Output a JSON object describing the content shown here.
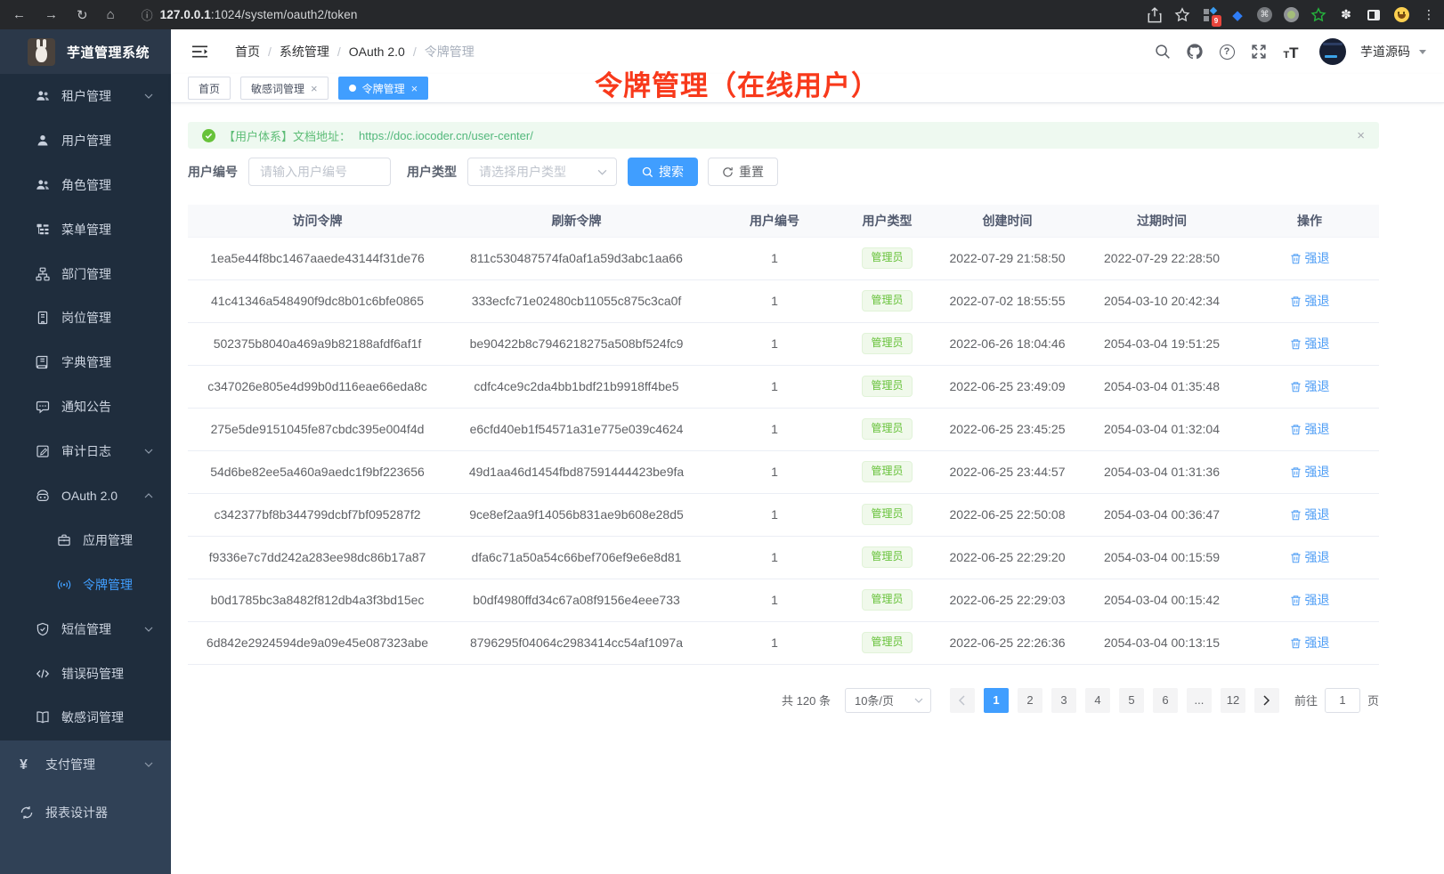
{
  "browser": {
    "url_host": "127.0.0.1",
    "url_rest": ":1024/system/oauth2/token",
    "extension_badge": "9"
  },
  "app": {
    "title": "芋道管理系统",
    "user_name": "芋道源码"
  },
  "breadcrumb": [
    "首页",
    "系统管理",
    "OAuth 2.0",
    "令牌管理"
  ],
  "tabs": [
    {
      "label": "首页",
      "closable": false,
      "active": false
    },
    {
      "label": "敏感词管理",
      "closable": true,
      "active": false
    },
    {
      "label": "令牌管理",
      "closable": true,
      "active": true
    }
  ],
  "annotation": {
    "text": "令牌管理（在线用户）",
    "color": "#f8391b"
  },
  "sidebar": {
    "sections": [
      {
        "theme": "dark",
        "items": [
          {
            "label": "租户管理",
            "icon": "users-icon",
            "level": 2,
            "chevron": "down"
          },
          {
            "label": "用户管理",
            "icon": "user-icon",
            "level": 2
          },
          {
            "label": "角色管理",
            "icon": "role-icon",
            "level": 2
          },
          {
            "label": "菜单管理",
            "icon": "menu-tree-icon",
            "level": 2
          },
          {
            "label": "部门管理",
            "icon": "org-tree-icon",
            "level": 2
          },
          {
            "label": "岗位管理",
            "icon": "post-icon",
            "level": 2
          },
          {
            "label": "字典管理",
            "icon": "dict-icon",
            "level": 2
          },
          {
            "label": "通知公告",
            "icon": "message-icon",
            "level": 2
          },
          {
            "label": "审计日志",
            "icon": "log-icon",
            "level": 2,
            "chevron": "down"
          },
          {
            "label": "OAuth 2.0",
            "icon": "robot-icon",
            "level": 2,
            "chevron": "up"
          },
          {
            "label": "应用管理",
            "icon": "briefcase-icon",
            "level": 3
          },
          {
            "label": "令牌管理",
            "icon": "signal-icon",
            "level": 3,
            "active": true
          },
          {
            "label": "短信管理",
            "icon": "shield-icon",
            "level": 2,
            "chevron": "down"
          },
          {
            "label": "错误码管理",
            "icon": "code-icon",
            "level": 2
          },
          {
            "label": "敏感词管理",
            "icon": "open-book-icon",
            "level": 2
          }
        ]
      },
      {
        "theme": "light",
        "items": [
          {
            "label": "支付管理",
            "icon": "yen-icon",
            "level": 1,
            "chevron": "down"
          },
          {
            "label": "报表设计器",
            "icon": "report-icon",
            "level": 1
          }
        ]
      }
    ]
  },
  "alert": {
    "text": "【用户体系】文档地址：",
    "link": "https://doc.iocoder.cn/user-center/"
  },
  "filters": {
    "user_id_label": "用户编号",
    "user_id_placeholder": "请输入用户编号",
    "user_type_label": "用户类型",
    "user_type_placeholder": "请选择用户类型",
    "search_label": "搜索",
    "reset_label": "重置"
  },
  "table": {
    "headers": [
      "访问令牌",
      "刷新令牌",
      "用户编号",
      "用户类型",
      "创建时间",
      "过期时间",
      "操作"
    ],
    "action_label": "强退",
    "rows": [
      {
        "access": "1ea5e44f8bc1467aaede43144f31de76",
        "refresh": "811c530487574fa0af1a59d3abc1aa66",
        "user_id": "1",
        "user_type": "管理员",
        "created": "2022-07-29 21:58:50",
        "expires": "2022-07-29 22:28:50"
      },
      {
        "access": "41c41346a548490f9dc8b01c6bfe0865",
        "refresh": "333ecfc71e02480cb11055c875c3ca0f",
        "user_id": "1",
        "user_type": "管理员",
        "created": "2022-07-02 18:55:55",
        "expires": "2054-03-10 20:42:34"
      },
      {
        "access": "502375b8040a469a9b82188afdf6af1f",
        "refresh": "be90422b8c7946218275a508bf524fc9",
        "user_id": "1",
        "user_type": "管理员",
        "created": "2022-06-26 18:04:46",
        "expires": "2054-03-04 19:51:25"
      },
      {
        "access": "c347026e805e4d99b0d116eae66eda8c",
        "refresh": "cdfc4ce9c2da4bb1bdf21b9918ff4be5",
        "user_id": "1",
        "user_type": "管理员",
        "created": "2022-06-25 23:49:09",
        "expires": "2054-03-04 01:35:48"
      },
      {
        "access": "275e5de9151045fe87cbdc395e004f4d",
        "refresh": "e6cfd40eb1f54571a31e775e039c4624",
        "user_id": "1",
        "user_type": "管理员",
        "created": "2022-06-25 23:45:25",
        "expires": "2054-03-04 01:32:04"
      },
      {
        "access": "54d6be82ee5a460a9aedc1f9bf223656",
        "refresh": "49d1aa46d1454fbd87591444423be9fa",
        "user_id": "1",
        "user_type": "管理员",
        "created": "2022-06-25 23:44:57",
        "expires": "2054-03-04 01:31:36"
      },
      {
        "access": "c342377bf8b344799dcbf7bf095287f2",
        "refresh": "9ce8ef2aa9f14056b831ae9b608e28d5",
        "user_id": "1",
        "user_type": "管理员",
        "created": "2022-06-25 22:50:08",
        "expires": "2054-03-04 00:36:47"
      },
      {
        "access": "f9336e7c7dd242a283ee98dc86b17a87",
        "refresh": "dfa6c71a50a54c66bef706ef9e6e8d81",
        "user_id": "1",
        "user_type": "管理员",
        "created": "2022-06-25 22:29:20",
        "expires": "2054-03-04 00:15:59"
      },
      {
        "access": "b0d1785bc3a8482f812db4a3f3bd15ec",
        "refresh": "b0df4980ffd34c67a08f9156e4eee733",
        "user_id": "1",
        "user_type": "管理员",
        "created": "2022-06-25 22:29:03",
        "expires": "2054-03-04 00:15:42"
      },
      {
        "access": "6d842e2924594de9a09e45e087323abe",
        "refresh": "8796295f04064c2983414cc54af1097a",
        "user_id": "1",
        "user_type": "管理员",
        "created": "2022-06-25 22:26:36",
        "expires": "2054-03-04 00:13:15"
      }
    ]
  },
  "pagination": {
    "total": "共 120 条",
    "page_size": "10条/页",
    "pages": [
      "1",
      "2",
      "3",
      "4",
      "5",
      "6",
      "...",
      "12"
    ],
    "active_page": "1",
    "goto_label": "前往",
    "goto_value": "1",
    "goto_suffix": "页"
  },
  "colors": {
    "accent": "#409eff",
    "success": "#67c23a",
    "annotation_red": "#f8391b",
    "sidebar_dark": "#1f2d3d",
    "sidebar_light": "#304156"
  }
}
